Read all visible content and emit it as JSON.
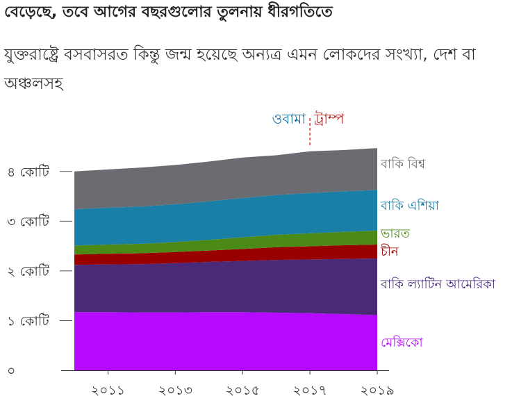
{
  "title": "বেড়েছে, তবে আগের বছরগুলোর তুলনায় ধীরগতিতে",
  "subtitle": "যুক্তরাষ্ট্রে বসবাসরত কিন্তু জন্ম হয়েছে অন্যত্র এমন লোকদের সংখ্যা, দেশ বা অঞ্চলসহ",
  "annotations": {
    "obama": "ওবামা",
    "trump": "ট্রাম্প"
  },
  "chart_data": {
    "type": "area",
    "stacked": true,
    "x": [
      2010,
      2011,
      2012,
      2013,
      2014,
      2015,
      2016,
      2017,
      2018,
      2019
    ],
    "xticks": [
      2011,
      2013,
      2015,
      2017,
      2019
    ],
    "xtick_labels": [
      "২০১১",
      "২০১৩",
      "২০১৫",
      "২০১৭",
      "২০১৯"
    ],
    "ylim": [
      0,
      45000000
    ],
    "yticks": [
      0,
      10000000,
      20000000,
      30000000,
      40000000
    ],
    "ytick_labels": [
      "০",
      "১ কোটি",
      "২ কোটি",
      "৩ কোটি",
      "৪ কোটি"
    ],
    "series": [
      {
        "name": "মেক্সিকো",
        "color": "#b50aff",
        "values": [
          11700000,
          11700000,
          11650000,
          11650000,
          11700000,
          11700000,
          11600000,
          11500000,
          11300000,
          11100000
        ]
      },
      {
        "name": "বাকি ল্যাটিন আমেরিকা",
        "color": "#4a2a78",
        "values": [
          9500000,
          9600000,
          9700000,
          9900000,
          10100000,
          10300000,
          10600000,
          10800000,
          11100000,
          11400000
        ]
      },
      {
        "name": "চীন",
        "color": "#990000",
        "values": [
          2100000,
          2150000,
          2200000,
          2250000,
          2300000,
          2400000,
          2550000,
          2650000,
          2750000,
          2800000
        ]
      },
      {
        "name": "ভারত",
        "color": "#4b8a17",
        "values": [
          1800000,
          1850000,
          1900000,
          2000000,
          2150000,
          2350000,
          2500000,
          2600000,
          2700000,
          2800000
        ]
      },
      {
        "name": "বাকি এশিয়া",
        "color": "#1a7fa6",
        "values": [
          7300000,
          7400000,
          7500000,
          7600000,
          7750000,
          7900000,
          8000000,
          8100000,
          8150000,
          8200000
        ]
      },
      {
        "name": "বাকি বিশ্ব",
        "color": "#6b6b72",
        "values": [
          7600000,
          7700000,
          7850000,
          7900000,
          8000000,
          8150000,
          8000000,
          8400000,
          8300000,
          8400000
        ]
      }
    ],
    "obama_trump_divider": 2017,
    "grid": false,
    "legend": "right-inline"
  }
}
